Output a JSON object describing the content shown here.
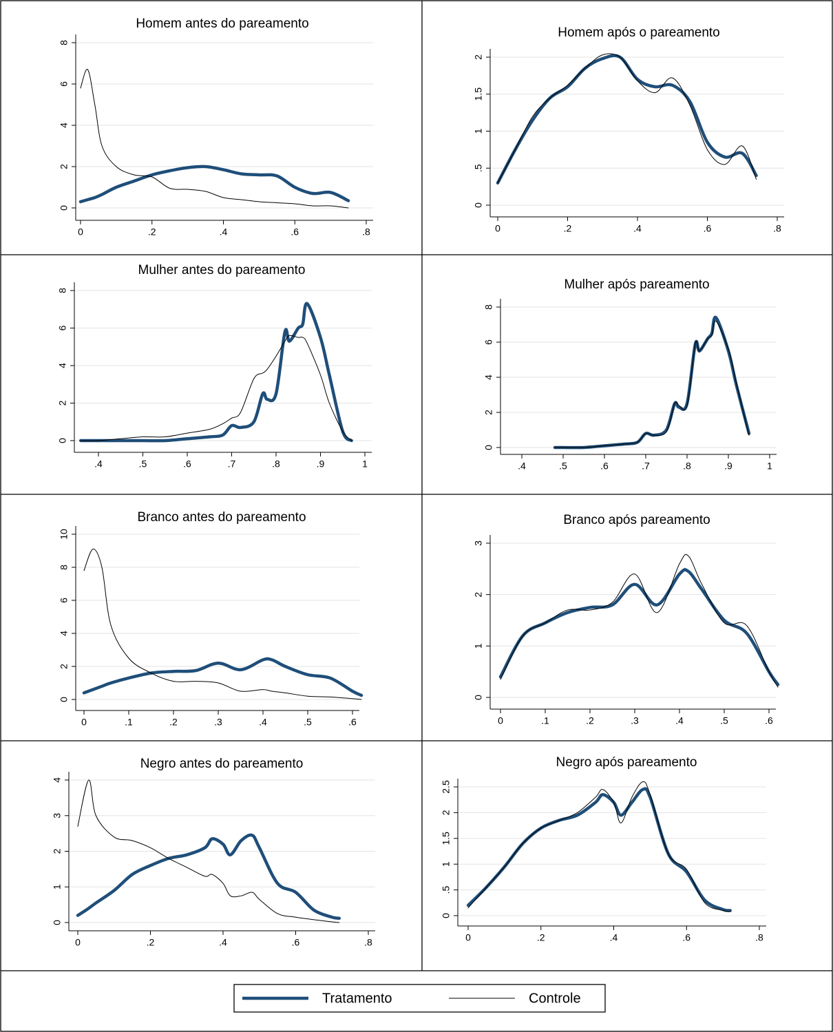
{
  "legend": [
    {
      "name": "Tratamento",
      "color": "#1f4e79",
      "width": 4.5
    },
    {
      "name": "Controle",
      "color": "#000000",
      "width": 1
    }
  ],
  "chart_data": [
    {
      "type": "line",
      "title": "Homem antes do pareamento",
      "grid": true,
      "x": [
        0,
        0.02,
        0.04,
        0.06,
        0.1,
        0.15,
        0.2,
        0.25,
        0.3,
        0.35,
        0.4,
        0.45,
        0.5,
        0.55,
        0.6,
        0.65,
        0.7,
        0.75
      ],
      "series": [
        {
          "values": [
            0.3,
            0.4,
            0.5,
            0.65,
            1.0,
            1.3,
            1.6,
            1.8,
            1.95,
            2.0,
            1.85,
            1.65,
            1.6,
            1.55,
            1.0,
            0.7,
            0.75,
            0.35
          ]
        },
        {
          "values": [
            5.8,
            6.7,
            5.0,
            3.0,
            2.0,
            1.6,
            1.5,
            0.95,
            0.9,
            0.8,
            0.5,
            0.4,
            0.3,
            0.25,
            0.2,
            0.1,
            0.1,
            0.0
          ]
        }
      ],
      "xlim": [
        0,
        0.8
      ],
      "ylim": [
        0,
        8
      ],
      "xticks": [
        0,
        {
          "value": 0.2,
          "label": ".2"
        },
        {
          "value": 0.4,
          "label": ".4"
        },
        {
          "value": 0.6,
          "label": ".6"
        },
        {
          "value": 0.8,
          "label": ".8"
        }
      ],
      "yticks": [
        0,
        2,
        4,
        6,
        8
      ]
    },
    {
      "type": "line",
      "title": "Homem após o pareamento",
      "grid": true,
      "x": [
        0,
        0.05,
        0.1,
        0.15,
        0.2,
        0.25,
        0.3,
        0.35,
        0.4,
        0.45,
        0.5,
        0.55,
        0.6,
        0.65,
        0.7,
        0.74
      ],
      "series": [
        {
          "values": [
            0.3,
            0.75,
            1.15,
            1.45,
            1.6,
            1.85,
            1.98,
            2.0,
            1.7,
            1.6,
            1.62,
            1.4,
            0.85,
            0.65,
            0.7,
            0.4
          ]
        },
        {
          "values": [
            0.3,
            0.75,
            1.2,
            1.45,
            1.62,
            1.85,
            2.03,
            2.0,
            1.68,
            1.52,
            1.72,
            1.35,
            0.75,
            0.55,
            0.8,
            0.35
          ]
        }
      ],
      "xlim": [
        0,
        0.8
      ],
      "ylim": [
        0,
        2
      ],
      "xticks": [
        0,
        {
          "value": 0.2,
          "label": ".2"
        },
        {
          "value": 0.4,
          "label": ".4"
        },
        {
          "value": 0.6,
          "label": ".6"
        },
        {
          "value": 0.8,
          "label": ".8"
        }
      ],
      "yticks": [
        0,
        {
          "value": 0.5,
          "label": ".5"
        },
        1,
        1.5,
        2
      ]
    },
    {
      "type": "line",
      "title": "Mulher antes do pareamento",
      "grid": true,
      "x": [
        0.36,
        0.4,
        0.45,
        0.5,
        0.55,
        0.6,
        0.65,
        0.68,
        0.7,
        0.72,
        0.75,
        0.77,
        0.78,
        0.8,
        0.82,
        0.83,
        0.85,
        0.86,
        0.87,
        0.9,
        0.92,
        0.95,
        0.97
      ],
      "series": [
        {
          "values": [
            0,
            0,
            0,
            0,
            0,
            0.1,
            0.2,
            0.3,
            0.8,
            0.7,
            1.0,
            2.5,
            2.2,
            2.5,
            5.8,
            5.3,
            6.0,
            6.2,
            7.3,
            5.5,
            3.5,
            0.5,
            0
          ]
        },
        {
          "values": [
            0,
            0,
            0.1,
            0.2,
            0.2,
            0.4,
            0.6,
            0.9,
            1.2,
            1.5,
            3.3,
            3.6,
            3.8,
            4.5,
            5.3,
            5.6,
            5.5,
            5.5,
            5.2,
            3.5,
            2.0,
            0.5,
            0
          ]
        }
      ],
      "xlim": [
        0.4,
        1
      ],
      "ylim": [
        0,
        8
      ],
      "xticks": [
        {
          "value": 0.4,
          "label": ".4"
        },
        {
          "value": 0.5,
          "label": ".5"
        },
        {
          "value": 0.6,
          "label": ".6"
        },
        {
          "value": 0.7,
          "label": ".7"
        },
        {
          "value": 0.8,
          "label": ".8"
        },
        {
          "value": 0.9,
          "label": ".9"
        },
        1
      ],
      "yticks": [
        0,
        2,
        4,
        6,
        8
      ]
    },
    {
      "type": "line",
      "title": "Mulher após pareamento",
      "grid": true,
      "x": [
        0.48,
        0.5,
        0.55,
        0.6,
        0.65,
        0.68,
        0.7,
        0.72,
        0.75,
        0.77,
        0.78,
        0.8,
        0.82,
        0.83,
        0.85,
        0.86,
        0.87,
        0.9,
        0.92,
        0.95
      ],
      "series": [
        {
          "values": [
            0,
            0,
            0,
            0.1,
            0.2,
            0.3,
            0.8,
            0.7,
            1.0,
            2.5,
            2.3,
            2.5,
            5.9,
            5.5,
            6.2,
            6.5,
            7.4,
            5.5,
            3.5,
            0.8
          ]
        },
        {
          "values": [
            0,
            0,
            0,
            0.1,
            0.2,
            0.3,
            0.8,
            0.7,
            0.9,
            2.5,
            2.4,
            2.4,
            5.9,
            5.5,
            6.2,
            6.4,
            7.2,
            5.6,
            3.6,
            0.7
          ]
        }
      ],
      "xlim": [
        0.4,
        1
      ],
      "ylim": [
        0,
        8
      ],
      "xticks": [
        {
          "value": 0.4,
          "label": ".4"
        },
        {
          "value": 0.5,
          "label": ".5"
        },
        {
          "value": 0.6,
          "label": ".6"
        },
        {
          "value": 0.7,
          "label": ".7"
        },
        {
          "value": 0.8,
          "label": ".8"
        },
        {
          "value": 0.9,
          "label": ".9"
        },
        1
      ],
      "yticks": [
        0,
        2,
        4,
        6,
        8
      ]
    },
    {
      "type": "line",
      "title": "Branco antes do pareamento",
      "grid": true,
      "x": [
        0,
        0.02,
        0.04,
        0.06,
        0.1,
        0.15,
        0.2,
        0.25,
        0.3,
        0.35,
        0.4,
        0.42,
        0.45,
        0.5,
        0.55,
        0.6,
        0.62
      ],
      "series": [
        {
          "values": [
            0.4,
            0.6,
            0.8,
            1.0,
            1.3,
            1.6,
            1.7,
            1.75,
            2.2,
            1.8,
            2.4,
            2.4,
            2.0,
            1.5,
            1.3,
            0.5,
            0.25
          ]
        },
        {
          "values": [
            7.8,
            9.1,
            8.0,
            4.5,
            2.5,
            1.6,
            1.1,
            1.1,
            1.0,
            0.5,
            0.6,
            0.5,
            0.4,
            0.2,
            0.15,
            0.05,
            0
          ]
        }
      ],
      "xlim": [
        0,
        0.6
      ],
      "ylim": [
        0,
        10
      ],
      "xticks": [
        0,
        {
          "value": 0.1,
          "label": ".1"
        },
        {
          "value": 0.2,
          "label": ".2"
        },
        {
          "value": 0.3,
          "label": ".3"
        },
        {
          "value": 0.4,
          "label": ".4"
        },
        {
          "value": 0.5,
          "label": ".5"
        },
        {
          "value": 0.6,
          "label": ".6"
        }
      ],
      "yticks": [
        0,
        2,
        4,
        6,
        8,
        10
      ]
    },
    {
      "type": "line",
      "title": "Branco após pareamento",
      "grid": true,
      "x": [
        0,
        0.05,
        0.1,
        0.15,
        0.2,
        0.25,
        0.3,
        0.35,
        0.4,
        0.42,
        0.45,
        0.5,
        0.55,
        0.6,
        0.62
      ],
      "series": [
        {
          "values": [
            0.4,
            1.2,
            1.45,
            1.65,
            1.75,
            1.8,
            2.2,
            1.8,
            2.4,
            2.45,
            2.1,
            1.5,
            1.25,
            0.5,
            0.25
          ]
        },
        {
          "values": [
            0.35,
            1.2,
            1.45,
            1.7,
            1.7,
            1.85,
            2.4,
            1.65,
            2.6,
            2.75,
            2.2,
            1.45,
            1.4,
            0.5,
            0.2
          ]
        }
      ],
      "xlim": [
        0,
        0.6
      ],
      "ylim": [
        0,
        3
      ],
      "xticks": [
        0,
        {
          "value": 0.1,
          "label": ".1"
        },
        {
          "value": 0.2,
          "label": ".2"
        },
        {
          "value": 0.3,
          "label": ".3"
        },
        {
          "value": 0.4,
          "label": ".4"
        },
        {
          "value": 0.5,
          "label": ".5"
        },
        {
          "value": 0.6,
          "label": ".6"
        }
      ],
      "yticks": [
        0,
        1,
        2,
        3
      ]
    },
    {
      "type": "line",
      "title": "Negro antes do pareamento",
      "grid": true,
      "x": [
        0,
        0.03,
        0.05,
        0.1,
        0.15,
        0.2,
        0.25,
        0.3,
        0.35,
        0.37,
        0.4,
        0.42,
        0.45,
        0.48,
        0.5,
        0.55,
        0.6,
        0.65,
        0.7,
        0.72
      ],
      "series": [
        {
          "values": [
            0.2,
            0.4,
            0.55,
            0.9,
            1.35,
            1.6,
            1.8,
            1.9,
            2.1,
            2.35,
            2.2,
            1.9,
            2.3,
            2.45,
            2.1,
            1.1,
            0.85,
            0.35,
            0.15,
            0.12
          ]
        },
        {
          "values": [
            2.7,
            4.0,
            3.0,
            2.4,
            2.3,
            2.1,
            1.8,
            1.55,
            1.3,
            1.35,
            1.1,
            0.75,
            0.75,
            0.85,
            0.65,
            0.25,
            0.15,
            0.08,
            0.02,
            0
          ]
        }
      ],
      "xlim": [
        0,
        0.8
      ],
      "ylim": [
        0,
        4
      ],
      "xticks": [
        0,
        {
          "value": 0.2,
          "label": ".2"
        },
        {
          "value": 0.4,
          "label": ".4"
        },
        {
          "value": 0.6,
          "label": ".6"
        },
        {
          "value": 0.8,
          "label": ".8"
        }
      ],
      "yticks": [
        0,
        1,
        2,
        3,
        4
      ]
    },
    {
      "type": "line",
      "title": "Negro após pareamento",
      "grid": true,
      "x": [
        0,
        0.05,
        0.1,
        0.15,
        0.2,
        0.25,
        0.3,
        0.35,
        0.37,
        0.4,
        0.42,
        0.45,
        0.48,
        0.5,
        0.55,
        0.6,
        0.65,
        0.7,
        0.72
      ],
      "series": [
        {
          "values": [
            0.2,
            0.55,
            0.95,
            1.4,
            1.7,
            1.85,
            1.95,
            2.2,
            2.35,
            2.2,
            1.95,
            2.2,
            2.45,
            2.3,
            1.2,
            0.85,
            0.3,
            0.12,
            0.1
          ]
        },
        {
          "values": [
            0.15,
            0.55,
            0.95,
            1.4,
            1.7,
            1.85,
            2.0,
            2.3,
            2.45,
            2.2,
            1.8,
            2.3,
            2.6,
            2.35,
            1.2,
            0.9,
            0.25,
            0.1,
            0.08
          ]
        }
      ],
      "xlim": [
        0,
        0.8
      ],
      "ylim": [
        0,
        2.5
      ],
      "xticks": [
        0,
        {
          "value": 0.2,
          "label": ".2"
        },
        {
          "value": 0.4,
          "label": ".4"
        },
        {
          "value": 0.6,
          "label": ".6"
        },
        {
          "value": 0.8,
          "label": ".8"
        }
      ],
      "yticks": [
        0,
        {
          "value": 0.5,
          "label": ".5"
        },
        1,
        1.5,
        2,
        2.5
      ]
    }
  ]
}
